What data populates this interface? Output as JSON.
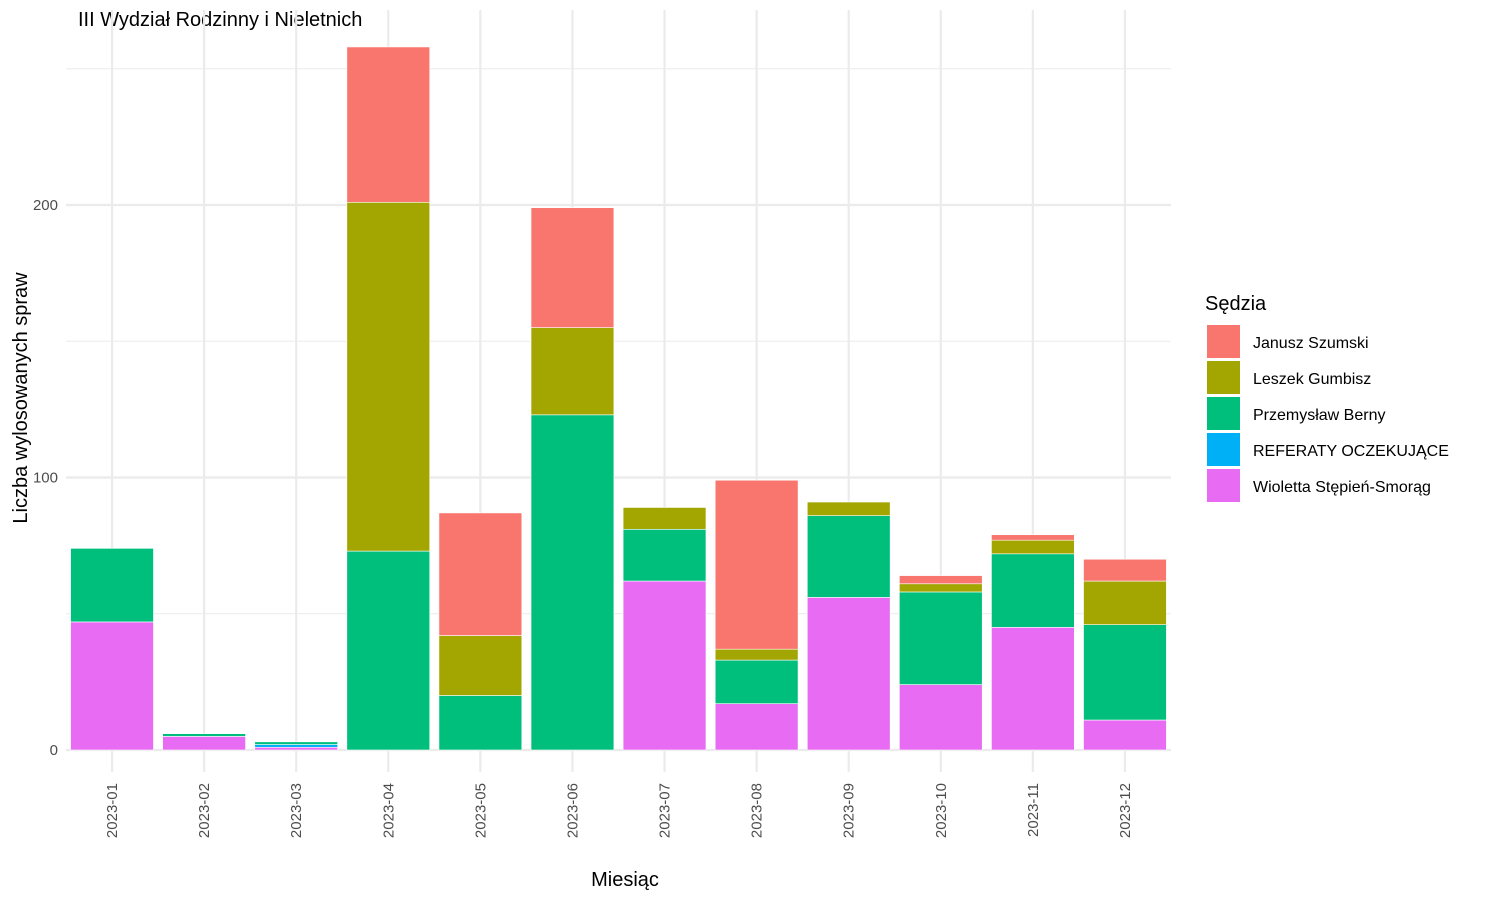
{
  "chart_data": {
    "type": "bar",
    "stacked": true,
    "title": "III Wydział Rodzinny i Nieletnich",
    "xlabel": "Miesiąc",
    "ylabel": "Liczba wylosowanych spraw",
    "ylim": [
      0,
      265
    ],
    "y_ticks": [
      0,
      100,
      200
    ],
    "grid": true,
    "legend_position": "right",
    "legend_title": "Sędzia",
    "categories": [
      "2023-01",
      "2023-02",
      "2023-03",
      "2023-04",
      "2023-05",
      "2023-06",
      "2023-07",
      "2023-08",
      "2023-09",
      "2023-10",
      "2023-11",
      "2023-12"
    ],
    "series": [
      {
        "name": "Wioletta Stępień-Smorąg",
        "color": "#E76BF3",
        "values": [
          47,
          5,
          1,
          0,
          0,
          0,
          62,
          17,
          56,
          24,
          45,
          11
        ]
      },
      {
        "name": "REFERATY OCZEKUJĄCE",
        "color": "#00B0F6",
        "values": [
          0,
          0,
          1,
          0,
          0,
          0,
          0,
          0,
          0,
          0,
          0,
          0
        ]
      },
      {
        "name": "Przemysław Berny",
        "color": "#00BF7D",
        "values": [
          27,
          1,
          1,
          73,
          20,
          123,
          19,
          16,
          30,
          34,
          27,
          35
        ]
      },
      {
        "name": "Leszek Gumbisz",
        "color": "#A3A500",
        "values": [
          0,
          0,
          0,
          128,
          22,
          32,
          8,
          4,
          5,
          3,
          5,
          16
        ]
      },
      {
        "name": "Janusz Szumski",
        "color": "#F8766D",
        "values": [
          0,
          0,
          0,
          57,
          45,
          44,
          0,
          62,
          0,
          3,
          2,
          8
        ]
      }
    ],
    "legend_order": [
      "Janusz Szumski",
      "Leszek Gumbisz",
      "Przemysław Berny",
      "REFERATY OCZEKUJĄCE",
      "Wioletta Stępień-Smorąg"
    ]
  }
}
